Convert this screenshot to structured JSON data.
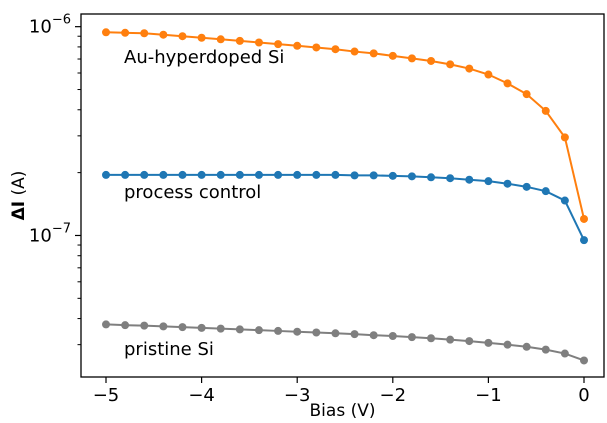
{
  "chart_data": {
    "type": "line",
    "xlabel": "Bias (V)",
    "ylabel_symbol": "ΔI",
    "ylabel_unit": " (A)",
    "yscale": "log",
    "xlim": [
      -5.25,
      0.2
    ],
    "ylim": [
      2.1e-08,
      1.15e-06
    ],
    "x_ticks": [
      -5,
      -4,
      -3,
      -2,
      -1,
      0
    ],
    "x_tick_labels": [
      "−5",
      "−4",
      "−3",
      "−2",
      "−1",
      "0"
    ],
    "y_major_ticks": [
      {
        "value": 1e-07,
        "base": "10",
        "exp": "−7"
      },
      {
        "value": 1e-06,
        "base": "10",
        "exp": "−6"
      }
    ],
    "x": [
      -5.0,
      -4.8,
      -4.6,
      -4.4,
      -4.2,
      -4.0,
      -3.8,
      -3.6,
      -3.4,
      -3.2,
      -3.0,
      -2.8,
      -2.6,
      -2.4,
      -2.2,
      -2.0,
      -1.8,
      -1.6,
      -1.4,
      -1.2,
      -1.0,
      -0.8,
      -0.6,
      -0.4,
      -0.2,
      0.0
    ],
    "series": [
      {
        "name": "Au-hyperdoped Si",
        "color": "#ff7f0e",
        "values": [
          9.4e-07,
          9.35e-07,
          9.3e-07,
          9.15e-07,
          9e-07,
          8.85e-07,
          8.7e-07,
          8.55e-07,
          8.4e-07,
          8.25e-07,
          8.1e-07,
          7.95e-07,
          7.8e-07,
          7.6e-07,
          7.45e-07,
          7.25e-07,
          7.05e-07,
          6.85e-07,
          6.6e-07,
          6.3e-07,
          5.9e-07,
          5.35e-07,
          4.75e-07,
          3.95e-07,
          2.95e-07,
          1.2e-07
        ]
      },
      {
        "name": "process control",
        "color": "#1f77b4",
        "values": [
          1.95e-07,
          1.95e-07,
          1.95e-07,
          1.95e-07,
          1.95e-07,
          1.95e-07,
          1.95e-07,
          1.95e-07,
          1.95e-07,
          1.95e-07,
          1.95e-07,
          1.95e-07,
          1.95e-07,
          1.94e-07,
          1.94e-07,
          1.93e-07,
          1.92e-07,
          1.9e-07,
          1.88e-07,
          1.85e-07,
          1.82e-07,
          1.77e-07,
          1.71e-07,
          1.63e-07,
          1.47e-07,
          9.5e-08
        ]
      },
      {
        "name": "pristine Si",
        "color": "#7f7f7f",
        "values": [
          3.75e-08,
          3.72e-08,
          3.7e-08,
          3.67e-08,
          3.64e-08,
          3.61e-08,
          3.58e-08,
          3.55e-08,
          3.52e-08,
          3.49e-08,
          3.46e-08,
          3.43e-08,
          3.4e-08,
          3.37e-08,
          3.33e-08,
          3.3e-08,
          3.26e-08,
          3.22e-08,
          3.17e-08,
          3.12e-08,
          3.06e-08,
          3e-08,
          2.93e-08,
          2.84e-08,
          2.72e-08,
          2.52e-08
        ]
      }
    ]
  }
}
